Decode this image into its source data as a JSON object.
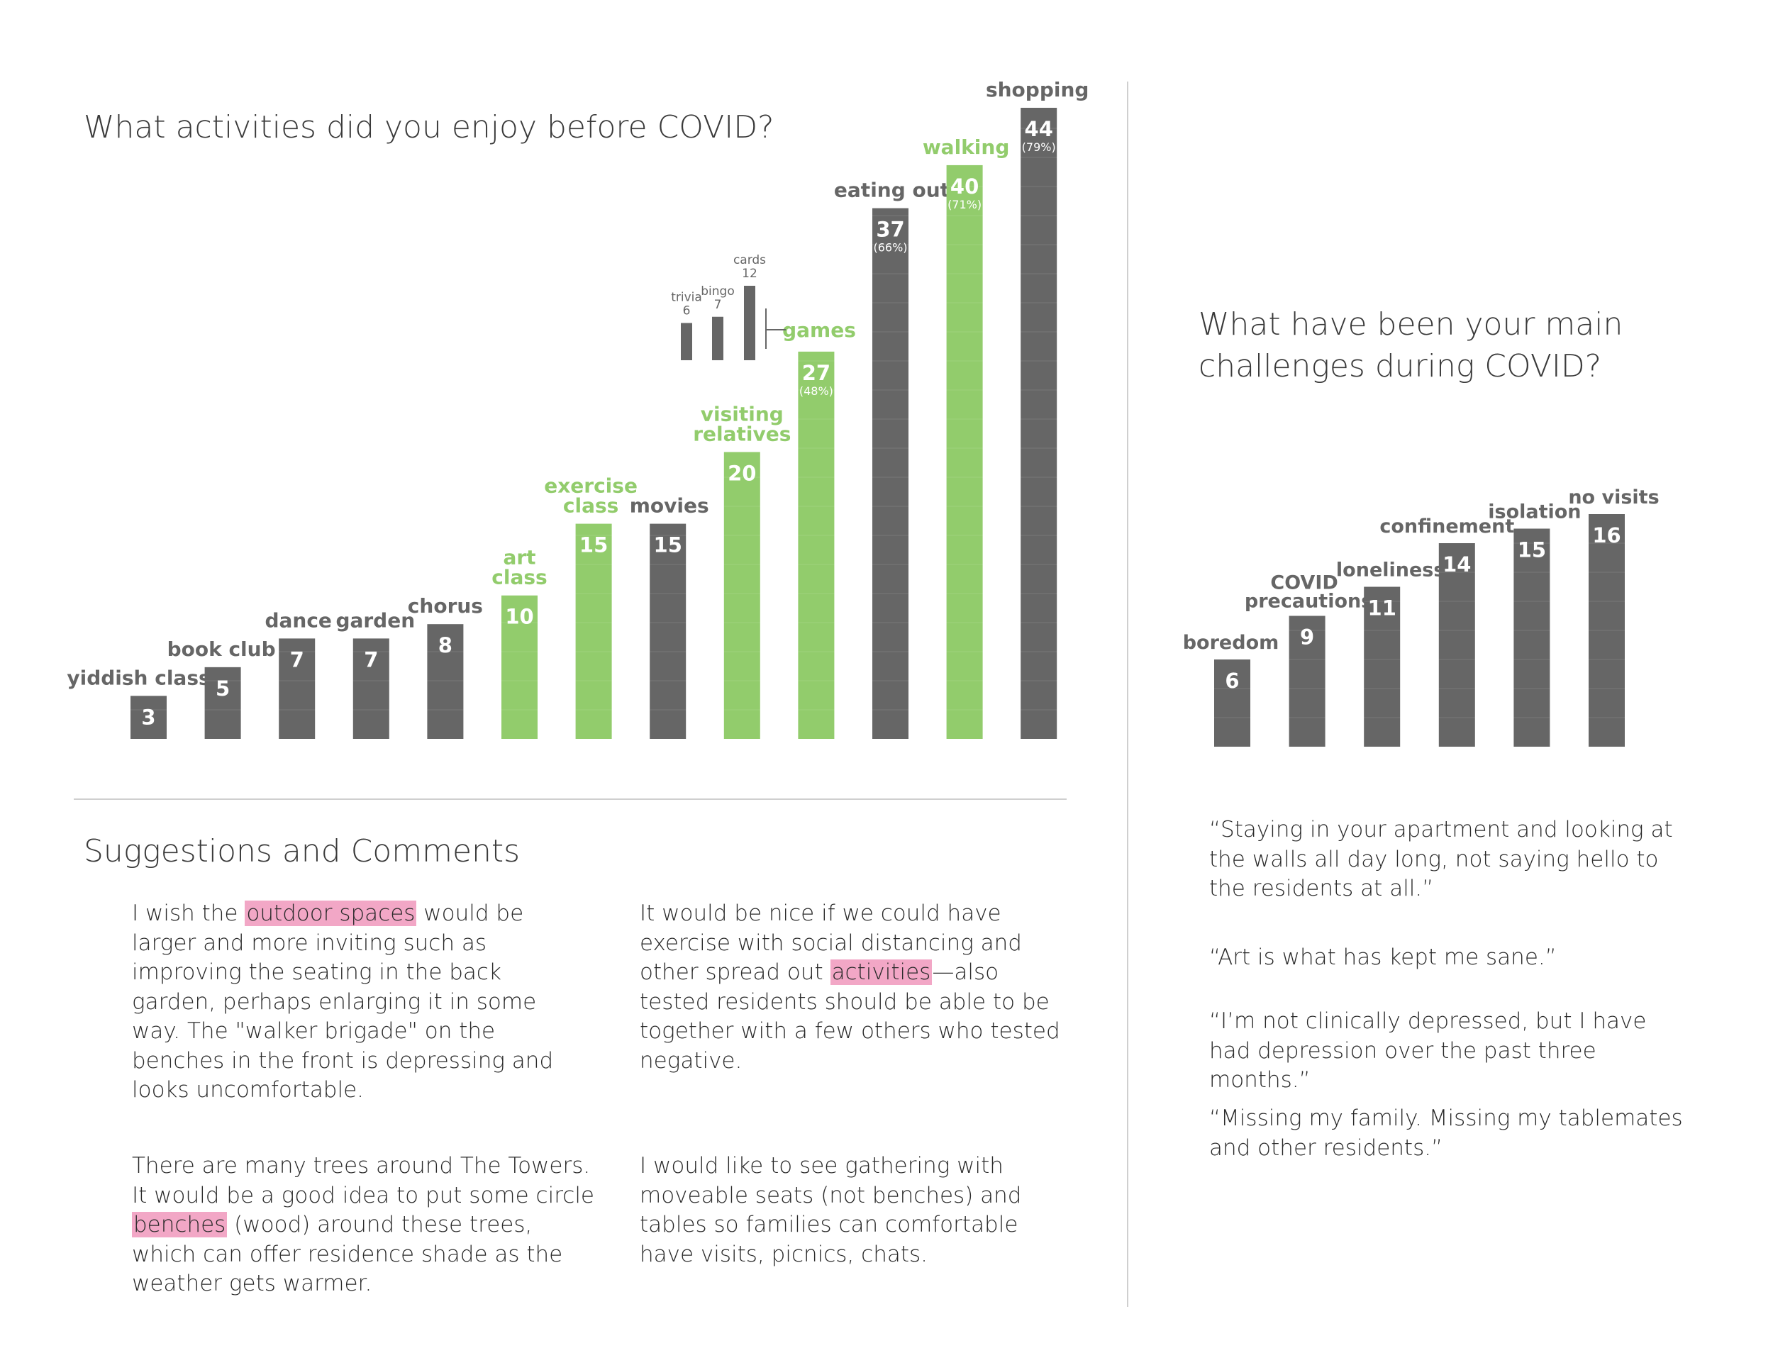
{
  "colors": {
    "gray": "#666666",
    "green": "#92cc6c",
    "highlight": "#f2a7c6",
    "rule": "#cfcfcf"
  },
  "chart1": {
    "title": "What activities did you enjoy before COVID?"
  },
  "chart2": {
    "title_line1": "What have been your main",
    "title_line2": "challenges during COVID?"
  },
  "chart_data": [
    {
      "type": "bar",
      "title": "What activities did you enjoy before COVID?",
      "categories": [
        "yiddish class",
        "book club",
        "dance",
        "garden",
        "chorus",
        "art class",
        "exercise class",
        "movies",
        "visiting relatives",
        "games",
        "eating out",
        "walking",
        "shopping"
      ],
      "values": [
        3,
        5,
        7,
        7,
        8,
        10,
        15,
        15,
        20,
        27,
        37,
        40,
        44
      ],
      "percent_labels": [
        "",
        "",
        "",
        "",
        "",
        "",
        "",
        "",
        "",
        "(48%)",
        "(66%)",
        "(71%)",
        "(79%)"
      ],
      "highlighted": [
        false,
        false,
        false,
        false,
        false,
        true,
        true,
        false,
        true,
        true,
        false,
        true,
        false
      ],
      "games_breakdown": {
        "categories": [
          "trivia",
          "bingo",
          "cards"
        ],
        "values": [
          6,
          7,
          12
        ]
      },
      "ylim": [
        0,
        44
      ]
    },
    {
      "type": "bar",
      "title": "What have been your main challenges during COVID?",
      "categories": [
        "boredom",
        "COVID precautions",
        "loneliness",
        "confinement",
        "isolation",
        "no visits"
      ],
      "values": [
        6,
        9,
        11,
        14,
        15,
        16
      ],
      "ylim": [
        0,
        16
      ]
    }
  ],
  "comments": {
    "title": "Suggestions and Comments",
    "c1": {
      "pre": "I wish the ",
      "hl": "outdoor spaces",
      "post": " would be larger and more inviting such as improving the seating in the back garden, perhaps enlarging it in some way. The \"walker brigade\" on the benches in the front is depressing and looks uncomfortable."
    },
    "c2": {
      "pre": "It would be nice if we could have exercise with social distancing and other spread out ",
      "hl": "activities",
      "post": "—also tested residents should be able to be together with a few others who tested negative."
    },
    "c3": {
      "pre": "There are many trees around The Towers. It would be a good idea to put some circle ",
      "hl": "benches",
      "post": " (wood) around these trees, which can offer residence shade as the weather gets warmer."
    },
    "c4": {
      "text": "I would like to see gathering with moveable seats (not benches) and tables so families can comfortable have visits, picnics, chats."
    }
  },
  "quotes": [
    "“Staying in your apartment and looking at the walls all day long, not saying hello to the residents at all.”",
    "“Art is what has kept me sane.”",
    "“I’m not clinically depressed, but I have had depression over the past three months.”",
    "“Missing my family. Missing my tablemates and other residents.”"
  ]
}
